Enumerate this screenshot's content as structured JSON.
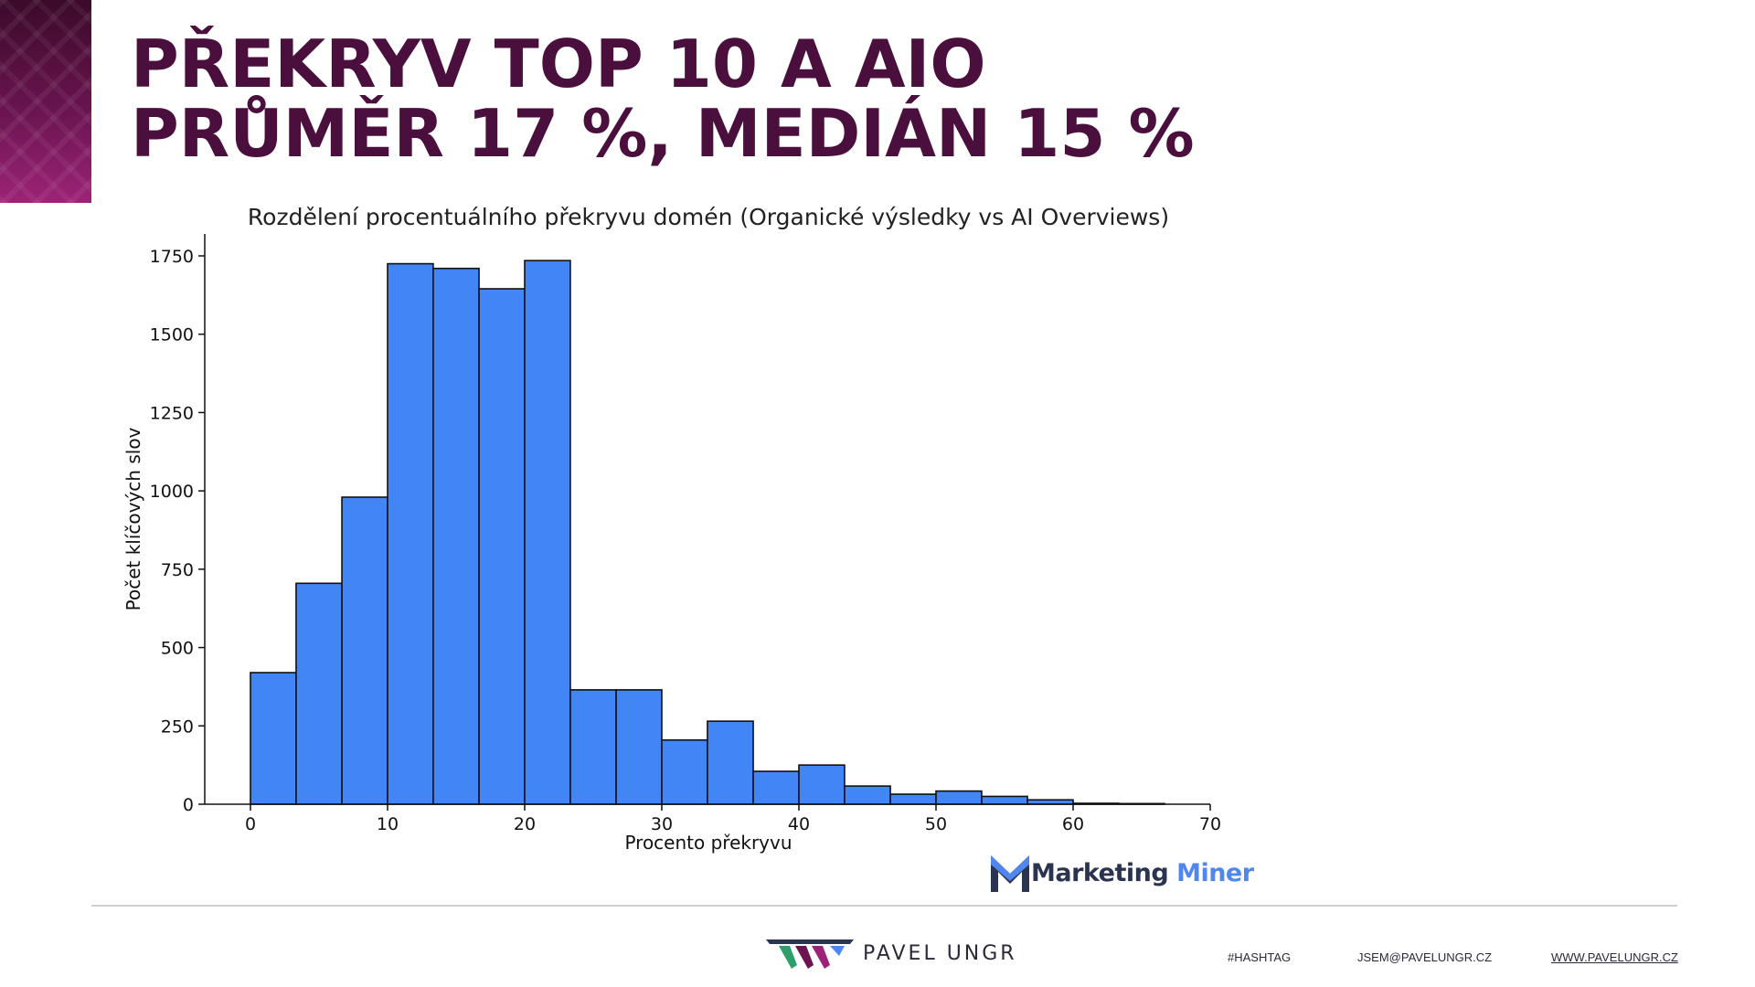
{
  "title": {
    "line1": "PŘEKRYV TOP 10 A AIO",
    "line2": "PRŮMĚR 17 %, MEDIÁN 15 %"
  },
  "chart_data": {
    "type": "bar",
    "title": "Rozdělení procentuálního překryvu domén (Organické výsledky vs AI Overviews)",
    "xlabel": "Procento překryvu",
    "ylabel": "Počet klíčových slov",
    "xlim": [
      0,
      70
    ],
    "ylim": [
      0,
      1750
    ],
    "xticks": [
      0,
      10,
      20,
      30,
      40,
      50,
      60,
      70
    ],
    "yticks": [
      0,
      250,
      500,
      750,
      1000,
      1250,
      1500,
      1750
    ],
    "bin_edges": [
      0,
      3.33,
      6.67,
      10,
      13.33,
      16.67,
      20,
      23.33,
      26.67,
      30,
      33.33,
      36.67,
      40,
      43.33,
      46.67,
      50,
      53.33,
      56.67,
      60,
      63.33,
      66.67
    ],
    "values": [
      420,
      705,
      980,
      1725,
      1710,
      1645,
      1735,
      365,
      365,
      205,
      265,
      105,
      125,
      58,
      32,
      42,
      25,
      14,
      3,
      2
    ],
    "bar_color": "#4285f4",
    "edge_color": "#111111",
    "grid": false
  },
  "logo": {
    "word1": "Marketing",
    "word2": "Miner"
  },
  "footer": {
    "brand": "PAVEL UNGR",
    "hashtag": "#HASHTAG",
    "email": "JSEM@PAVELUNGR.CZ",
    "website": "WWW.PAVELUNGR.CZ"
  }
}
